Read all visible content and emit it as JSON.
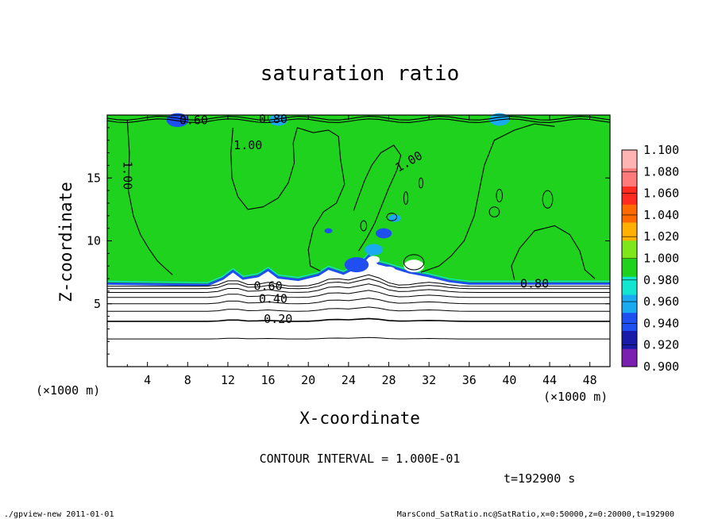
{
  "chart_data": {
    "type": "heatmap",
    "title": "saturation ratio",
    "xlabel": "X-coordinate",
    "ylabel": "Z-coordinate",
    "x_unit": "(×1000 m)",
    "z_unit": "(×1000 m)",
    "xlim": [
      0,
      50
    ],
    "ylim": [
      0,
      20
    ],
    "xticks": [
      "4",
      "8",
      "12",
      "16",
      "20",
      "24",
      "28",
      "32",
      "36",
      "40",
      "44",
      "48"
    ],
    "yticks": [
      "5",
      "10",
      "15"
    ],
    "colorbar": {
      "levels": [
        "0.900",
        "0.920",
        "0.940",
        "0.960",
        "0.980",
        "1.000",
        "1.020",
        "1.040",
        "1.060",
        "1.080",
        "1.100"
      ],
      "colors": [
        "#7a1fb0",
        "#1a1aa8",
        "#1f4ff0",
        "#19aaf0",
        "#12e6d0",
        "#1ed21e",
        "#7ee61a",
        "#ffb000",
        "#ff6a00",
        "#ff2a20",
        "#ff7a7a",
        "#ffb4b4"
      ]
    },
    "contour_labels": [
      "0.60",
      "0.80",
      "1.00",
      "1.00",
      "1.00",
      "0.80",
      "0.60",
      "0.40",
      "0.20"
    ],
    "contour_interval_text": "CONTOUR INTERVAL = 1.000E-01",
    "time_text": "t=192900 s"
  },
  "footer": {
    "left": "./gpview-new  2011-01-01",
    "right": "MarsCond_SatRatio.nc@SatRatio,x=0:50000,z=0:20000,t=192900"
  }
}
